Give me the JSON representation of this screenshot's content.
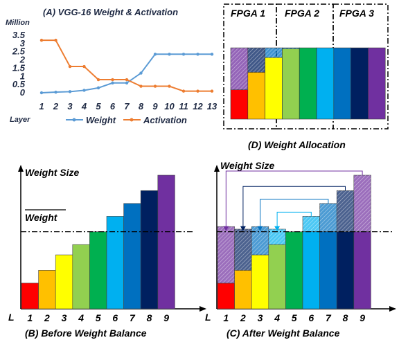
{
  "chart_data": [
    {
      "id": "A",
      "type": "line",
      "title": "(A) VGG-16 Weight & Activation",
      "ylabel": "Million",
      "xlabel": "Layer",
      "x": [
        1,
        2,
        3,
        4,
        5,
        6,
        7,
        8,
        9,
        10,
        11,
        12,
        13
      ],
      "yticks": [
        "3.5",
        "3",
        "2.5",
        "2",
        "1.5",
        "1",
        "0.5",
        "0"
      ],
      "ylim": [
        0,
        3.5
      ],
      "legend_position": "bottom",
      "series": [
        {
          "name": "Weight",
          "color": "#5b9bd5",
          "values": [
            0.0,
            0.04,
            0.07,
            0.15,
            0.3,
            0.6,
            0.6,
            1.2,
            2.35,
            2.35,
            2.35,
            2.35,
            2.35
          ]
        },
        {
          "name": "Activation",
          "color": "#ed7d31",
          "values": [
            3.2,
            3.2,
            1.6,
            1.6,
            0.8,
            0.8,
            0.8,
            0.4,
            0.4,
            0.4,
            0.1,
            0.1,
            0.1
          ]
        }
      ]
    },
    {
      "id": "B",
      "type": "bar",
      "title": "(B) Before Weight Balance",
      "ylabel": "Weight Size",
      "xlabel": "L",
      "avg_label": "Weight",
      "categories": [
        "1",
        "2",
        "3",
        "4",
        "5",
        "6",
        "7",
        "8",
        "9"
      ],
      "values": [
        1.0,
        1.5,
        2.1,
        2.5,
        3.0,
        3.6,
        4.1,
        4.6,
        5.2
      ],
      "average": 3.0
    },
    {
      "id": "C",
      "type": "bar",
      "title": "(C) After Weight Balance",
      "ylabel": "Weight Size",
      "xlabel": "L",
      "categories": [
        "1",
        "2",
        "3",
        "4",
        "5",
        "6",
        "7",
        "8",
        "9"
      ],
      "values": [
        1.0,
        1.5,
        2.1,
        2.5,
        3.0,
        3.6,
        4.1,
        4.6,
        5.2
      ],
      "balanced_level": 3.0,
      "transfers": [
        [
          "9",
          "1"
        ],
        [
          "8",
          "2"
        ],
        [
          "7",
          "3"
        ],
        [
          "6",
          "4"
        ]
      ]
    },
    {
      "id": "D",
      "type": "bar",
      "title": "(D) Weight Allocation",
      "groups": [
        "FPGA 1",
        "FPGA 2",
        "FPGA 3"
      ],
      "columns": [
        {
          "layer": "1",
          "own": 0.3,
          "extra_from": "9",
          "extra": 0.43
        },
        {
          "layer": "2",
          "own": 0.48,
          "extra_from": "8",
          "extra": 0.25
        },
        {
          "layer": "3",
          "own": 0.63,
          "extra_from": "7",
          "extra": 0.1
        },
        {
          "layer": "4",
          "own": 0.72,
          "extra_from": "6",
          "extra": 0.01
        },
        {
          "layer": "5",
          "own": 0.73
        },
        {
          "layer": "6",
          "own": 0.73
        },
        {
          "layer": "7",
          "own": 0.73
        },
        {
          "layer": "8",
          "own": 0.73
        },
        {
          "layer": "9",
          "own": 0.73
        }
      ]
    }
  ],
  "layer_colors": [
    "#ff0000",
    "#ffc000",
    "#ffff00",
    "#92d050",
    "#00b050",
    "#00b0f0",
    "#0070c0",
    "#002060",
    "#7030a0"
  ]
}
